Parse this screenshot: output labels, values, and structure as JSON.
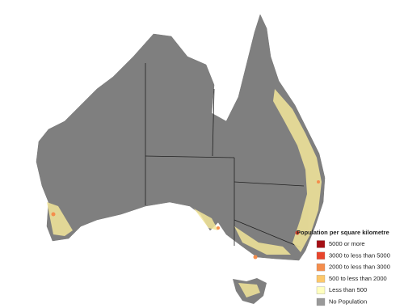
{
  "legend": {
    "title": "Population per square kilometre",
    "items": [
      {
        "label": "5000 or more",
        "color": "#a50f15"
      },
      {
        "label": "3000 to less than 5000",
        "color": "#e8452c"
      },
      {
        "label": "2000 to less than 3000",
        "color": "#f58d4c"
      },
      {
        "label": "500 to less than 2000",
        "color": "#fdc86a"
      },
      {
        "label": "Less than 500",
        "color": "#ffffbf"
      },
      {
        "label": "No Population",
        "color": "#999999"
      }
    ]
  }
}
